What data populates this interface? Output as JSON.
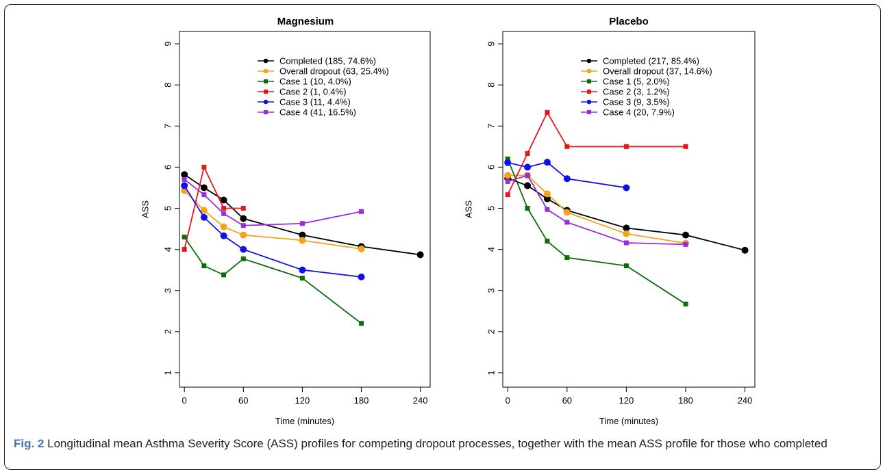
{
  "caption": {
    "label": "Fig. 2",
    "text": " Longitudinal mean Asthma Severity Score (ASS) profiles for competing dropout processes, together with the mean ASS profile for those who completed"
  },
  "chart_data": [
    {
      "type": "line",
      "title": "Magnesium",
      "xlabel": "Time (minutes)",
      "ylabel": "ASS",
      "xticks": [
        0,
        60,
        120,
        180,
        240
      ],
      "yticks": [
        1,
        2,
        3,
        4,
        5,
        6,
        7,
        8,
        9
      ],
      "xlim": [
        -5,
        250
      ],
      "ylim": [
        0.65,
        9.3
      ],
      "legend_position": "top-right",
      "series": [
        {
          "name": "Completed (185, 74.6%)",
          "color": "#000000",
          "marker": "circle",
          "x": [
            0,
            20,
            40,
            60,
            120,
            180,
            240
          ],
          "y": [
            5.82,
            5.5,
            5.2,
            4.75,
            4.35,
            4.07,
            3.87
          ]
        },
        {
          "name": "Overall dropout (63, 25.4%)",
          "color": "#f5a31a",
          "marker": "circle",
          "x": [
            0,
            20,
            40,
            60,
            120,
            180
          ],
          "y": [
            5.43,
            4.95,
            4.55,
            4.35,
            4.22,
            4.01
          ]
        },
        {
          "name": "Case 1 (10, 4.0%)",
          "color": "#0a6e0a",
          "marker": "square",
          "x": [
            0,
            20,
            40,
            60,
            120,
            180
          ],
          "y": [
            4.3,
            3.6,
            3.38,
            3.77,
            3.3,
            2.2
          ]
        },
        {
          "name": "Case 2 (1, 0.4%)",
          "color": "#e8161a",
          "marker": "square",
          "x": [
            0,
            20,
            40,
            60
          ],
          "y": [
            4.0,
            6.0,
            5.0,
            5.0
          ]
        },
        {
          "name": "Case 3 (11, 4.4%)",
          "color": "#1010e6",
          "marker": "circle",
          "x": [
            0,
            20,
            40,
            60,
            120,
            180
          ],
          "y": [
            5.55,
            4.78,
            4.33,
            4.0,
            3.5,
            3.33
          ]
        },
        {
          "name": "Case 4 (41, 16.5%)",
          "color": "#9a2be0",
          "marker": "square",
          "x": [
            0,
            20,
            40,
            60,
            120,
            180
          ],
          "y": [
            5.7,
            5.33,
            4.87,
            4.58,
            4.63,
            4.92
          ]
        }
      ]
    },
    {
      "type": "line",
      "title": "Placebo",
      "xlabel": "Time (minutes)",
      "ylabel": "ASS",
      "xticks": [
        0,
        60,
        120,
        180,
        240
      ],
      "yticks": [
        1,
        2,
        3,
        4,
        5,
        6,
        7,
        8,
        9
      ],
      "xlim": [
        -5,
        250
      ],
      "ylim": [
        0.65,
        9.3
      ],
      "legend_position": "top-right",
      "series": [
        {
          "name": "Completed (217, 85.4%)",
          "color": "#000000",
          "marker": "circle",
          "x": [
            0,
            20,
            40,
            60,
            120,
            180,
            240
          ],
          "y": [
            5.73,
            5.55,
            5.23,
            4.95,
            4.52,
            4.35,
            3.98
          ]
        },
        {
          "name": "Overall dropout (37, 14.6%)",
          "color": "#f5a31a",
          "marker": "circle",
          "x": [
            0,
            20,
            40,
            60,
            120,
            180
          ],
          "y": [
            5.8,
            5.8,
            5.35,
            4.9,
            4.38,
            4.15
          ]
        },
        {
          "name": "Case 1 (5, 2.0%)",
          "color": "#0a6e0a",
          "marker": "square",
          "x": [
            0,
            20,
            40,
            60,
            120,
            180
          ],
          "y": [
            6.2,
            5.0,
            4.2,
            3.8,
            3.6,
            2.67
          ]
        },
        {
          "name": "Case 2 (3, 1.2%)",
          "color": "#e8161a",
          "marker": "square",
          "x": [
            0,
            20,
            40,
            60,
            120,
            180
          ],
          "y": [
            5.33,
            6.33,
            7.33,
            6.5,
            6.5,
            6.5
          ]
        },
        {
          "name": "Case 3 (9, 3.5%)",
          "color": "#1010e6",
          "marker": "circle",
          "x": [
            0,
            20,
            40,
            60,
            120
          ],
          "y": [
            6.11,
            6.0,
            6.12,
            5.72,
            5.5
          ]
        },
        {
          "name": "Case 4 (20, 7.9%)",
          "color": "#9a2be0",
          "marker": "square",
          "x": [
            0,
            20,
            40,
            60,
            120,
            180
          ],
          "y": [
            5.65,
            5.8,
            4.97,
            4.66,
            4.16,
            4.12
          ]
        }
      ]
    }
  ]
}
